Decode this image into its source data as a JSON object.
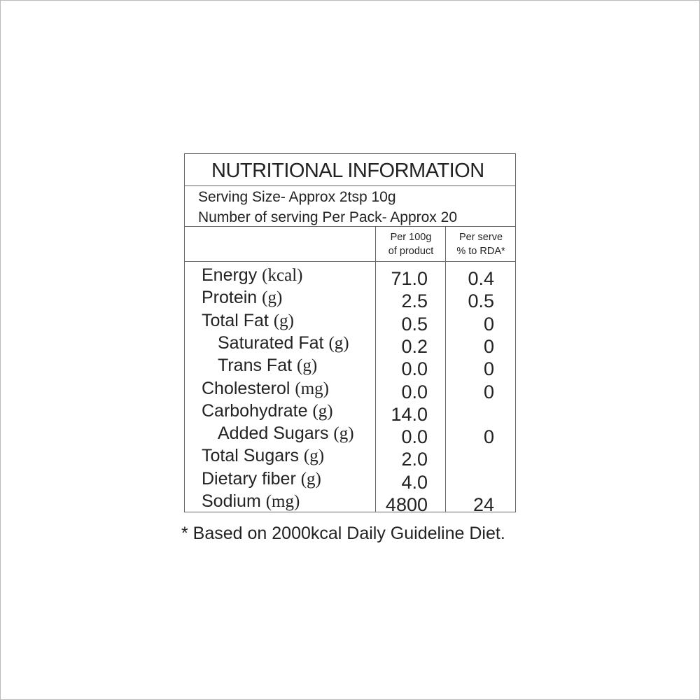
{
  "title": "NUTRITIONAL INFORMATION",
  "serving_size": "Serving Size- Approx 2tsp 10g",
  "servings_per_pack": "Number of serving Per Pack- Approx 20",
  "columns": {
    "per100_line1": "Per 100g",
    "per100_line2": "of product",
    "rda_line1": "Per serve",
    "rda_line2": "% to RDA*"
  },
  "rows": [
    {
      "name": "Energy",
      "unit": "(kcal)",
      "per100": "71.0",
      "rda": "0.4",
      "indent": false
    },
    {
      "name": "Protein",
      "unit": "(g)",
      "per100": "2.5",
      "rda": "0.5",
      "indent": false
    },
    {
      "name": "Total Fat",
      "unit": "(g)",
      "per100": "0.5",
      "rda": "0",
      "indent": false
    },
    {
      "name": "Saturated Fat",
      "unit": "(g)",
      "per100": "0.2",
      "rda": "0",
      "indent": true
    },
    {
      "name": "Trans Fat",
      "unit": "(g)",
      "per100": "0.0",
      "rda": "0",
      "indent": true
    },
    {
      "name": "Cholesterol",
      "unit": "(mg)",
      "per100": "0.0",
      "rda": "0",
      "indent": false
    },
    {
      "name": "Carbohydrate",
      "unit": "(g)",
      "per100": "14.0",
      "rda": "",
      "indent": false
    },
    {
      "name": "Added Sugars",
      "unit": "(g)",
      "per100": "0.0",
      "rda": "0",
      "indent": true
    },
    {
      "name": "Total Sugars",
      "unit": "(g)",
      "per100": "2.0",
      "rda": "",
      "indent": false
    },
    {
      "name": "Dietary fiber",
      "unit": "(g)",
      "per100": "4.0",
      "rda": "",
      "indent": false
    },
    {
      "name": "Sodium",
      "unit": "(mg)",
      "per100": "4800",
      "rda": "24",
      "indent": false
    }
  ],
  "footnote": "* Based on 2000kcal Daily Guideline Diet."
}
